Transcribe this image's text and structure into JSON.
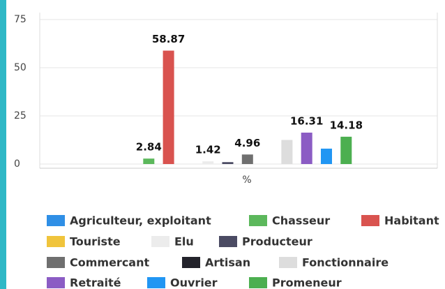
{
  "chart_data": {
    "type": "bar",
    "categories": [
      "%"
    ],
    "ylim": [
      0,
      75
    ],
    "yticks": [
      0,
      25,
      50,
      75
    ],
    "grid": true,
    "series": [
      {
        "name": "Agriculteur, exploitant",
        "color": "#2f8fe6",
        "values": [
          0
        ],
        "data_labels": false
      },
      {
        "name": "Chasseur",
        "color": "#5cb85c",
        "values": [
          2.84
        ],
        "data_labels": true
      },
      {
        "name": "Habitant",
        "color": "#d9534f",
        "values": [
          58.87
        ],
        "data_labels": true
      },
      {
        "name": "Touriste",
        "color": "#f0c43c",
        "values": [
          0
        ],
        "data_labels": false
      },
      {
        "name": "Elu",
        "color": "#ececec",
        "values": [
          1.42
        ],
        "data_labels": true
      },
      {
        "name": "Producteur",
        "color": "#4b4b63",
        "values": [
          1.0
        ],
        "data_labels": false
      },
      {
        "name": "Commercant",
        "color": "#6f6f6f",
        "values": [
          4.96
        ],
        "data_labels": true
      },
      {
        "name": "Artisan",
        "color": "#23232b",
        "values": [
          0
        ],
        "data_labels": false
      },
      {
        "name": "Fonctionnaire",
        "color": "#dddddd",
        "values": [
          12.5
        ],
        "data_labels": false
      },
      {
        "name": "Retraité",
        "color": "#8b5cc4",
        "values": [
          16.31
        ],
        "data_labels": true
      },
      {
        "name": "Ouvrier",
        "color": "#2196f3",
        "values": [
          8
        ],
        "data_labels": false
      },
      {
        "name": "Promeneur",
        "color": "#4caf50",
        "values": [
          14.18
        ],
        "data_labels": true
      }
    ]
  }
}
